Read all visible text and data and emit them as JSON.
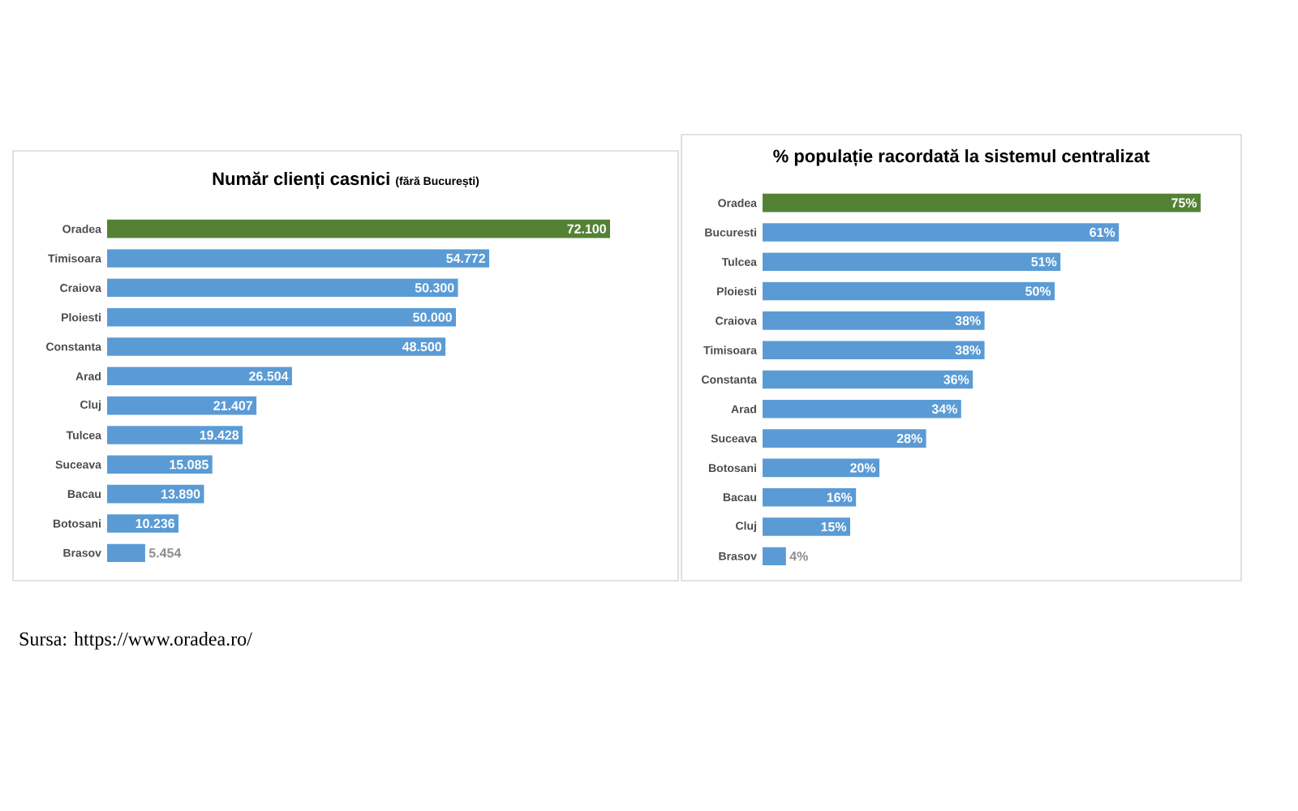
{
  "chart_data": [
    {
      "type": "bar",
      "orientation": "horizontal",
      "title": "Număr clienți casnici",
      "subtitle": "(fără București)",
      "tick_labels": "y",
      "categories": [
        "Oradea",
        "Timisoara",
        "Craiova",
        "Ploiesti",
        "Constanta",
        "Arad",
        "Cluj",
        "Tulcea",
        "Suceava",
        "Bacau",
        "Botosani",
        "Brasov"
      ],
      "values": [
        72100,
        54772,
        50300,
        50000,
        48500,
        26504,
        21407,
        19428,
        15085,
        13890,
        10236,
        5454
      ],
      "value_labels": [
        "72.100",
        "54.772",
        "50.300",
        "50.000",
        "48.500",
        "26.504",
        "21.407",
        "19.428",
        "15.085",
        "13.890",
        "10.236",
        "5.454"
      ],
      "colors": [
        "#548235",
        "#5b9bd5",
        "#5b9bd5",
        "#5b9bd5",
        "#5b9bd5",
        "#5b9bd5",
        "#5b9bd5",
        "#5b9bd5",
        "#5b9bd5",
        "#5b9bd5",
        "#5b9bd5",
        "#5b9bd5"
      ],
      "annotations": [
        "Sursa: https://www.oradea.ro/"
      ]
    },
    {
      "type": "bar",
      "orientation": "horizontal",
      "title": "% populație racordată la sistemul centralizat",
      "tick_labels": "y",
      "categories": [
        "Oradea",
        "Bucuresti",
        "Tulcea",
        "Ploiesti",
        "Craiova",
        "Timisoara",
        "Constanta",
        "Arad",
        "Suceava",
        "Botosani",
        "Bacau",
        "Cluj",
        "Brasov"
      ],
      "values": [
        75,
        61,
        51,
        50,
        38,
        38,
        36,
        34,
        28,
        20,
        16,
        15,
        4
      ],
      "value_labels": [
        "75%",
        "61%",
        "51%",
        "50%",
        "38%",
        "38%",
        "36%",
        "34%",
        "28%",
        "20%",
        "16%",
        "15%",
        "4%"
      ],
      "colors": [
        "#548235",
        "#5b9bd5",
        "#5b9bd5",
        "#5b9bd5",
        "#5b9bd5",
        "#5b9bd5",
        "#5b9bd5",
        "#5b9bd5",
        "#5b9bd5",
        "#5b9bd5",
        "#5b9bd5",
        "#5b9bd5",
        "#5b9bd5"
      ]
    }
  ]
}
